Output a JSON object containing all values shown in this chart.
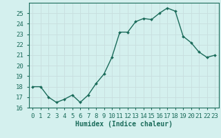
{
  "x": [
    0,
    1,
    2,
    3,
    4,
    5,
    6,
    7,
    8,
    9,
    10,
    11,
    12,
    13,
    14,
    15,
    16,
    17,
    18,
    19,
    20,
    21,
    22,
    23
  ],
  "y": [
    18,
    18,
    17,
    16.5,
    16.8,
    17.2,
    16.5,
    17.2,
    18.3,
    19.2,
    20.8,
    23.2,
    23.2,
    24.2,
    24.5,
    24.4,
    25.0,
    25.5,
    25.2,
    22.8,
    22.2,
    21.3,
    20.8,
    21.0
  ],
  "line_color": "#1a6b5a",
  "marker_color": "#1a6b5a",
  "bg_color": "#d4f0ee",
  "grid_color": "#c8dede",
  "xlabel": "Humidex (Indice chaleur)",
  "ylim": [
    16,
    26
  ],
  "xlim": [
    -0.5,
    23.5
  ],
  "yticks": [
    16,
    17,
    18,
    19,
    20,
    21,
    22,
    23,
    24,
    25
  ],
  "xticks": [
    0,
    1,
    2,
    3,
    4,
    5,
    6,
    7,
    8,
    9,
    10,
    11,
    12,
    13,
    14,
    15,
    16,
    17,
    18,
    19,
    20,
    21,
    22,
    23
  ],
  "axis_color": "#1a6b5a",
  "label_fontsize": 7,
  "tick_fontsize": 6.5,
  "linewidth": 1.0,
  "markersize": 2.0
}
